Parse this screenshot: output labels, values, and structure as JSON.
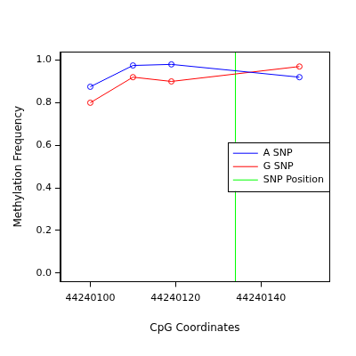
{
  "chart_data": {
    "type": "line",
    "x_label": "CpG Coordinates",
    "y_label": "Methylation Frequency",
    "x": [
      44240100,
      44240110,
      44240119,
      44240149
    ],
    "series": [
      {
        "name": "A SNP",
        "color": "#0000ff",
        "marker": "circle",
        "values": [
          0.875,
          0.975,
          0.98,
          0.92
        ]
      },
      {
        "name": "G SNP",
        "color": "#ff0000",
        "marker": "circle",
        "values": [
          0.8,
          0.92,
          0.9,
          0.97
        ]
      },
      {
        "name": "SNP Position",
        "color": "#00ff00",
        "type": "vline",
        "x": 44240134
      }
    ],
    "xlim": [
      44240093,
      44240156
    ],
    "xticks": [
      44240100,
      44240120,
      44240140
    ],
    "ylim": [
      -0.04,
      1.04
    ],
    "yticks": [
      {
        "value": 0,
        "label": "0.0"
      },
      0.2,
      0.4,
      0.6,
      0.8,
      {
        "value": 1,
        "label": "1.0"
      }
    ],
    "grid": false,
    "legend": "right"
  }
}
